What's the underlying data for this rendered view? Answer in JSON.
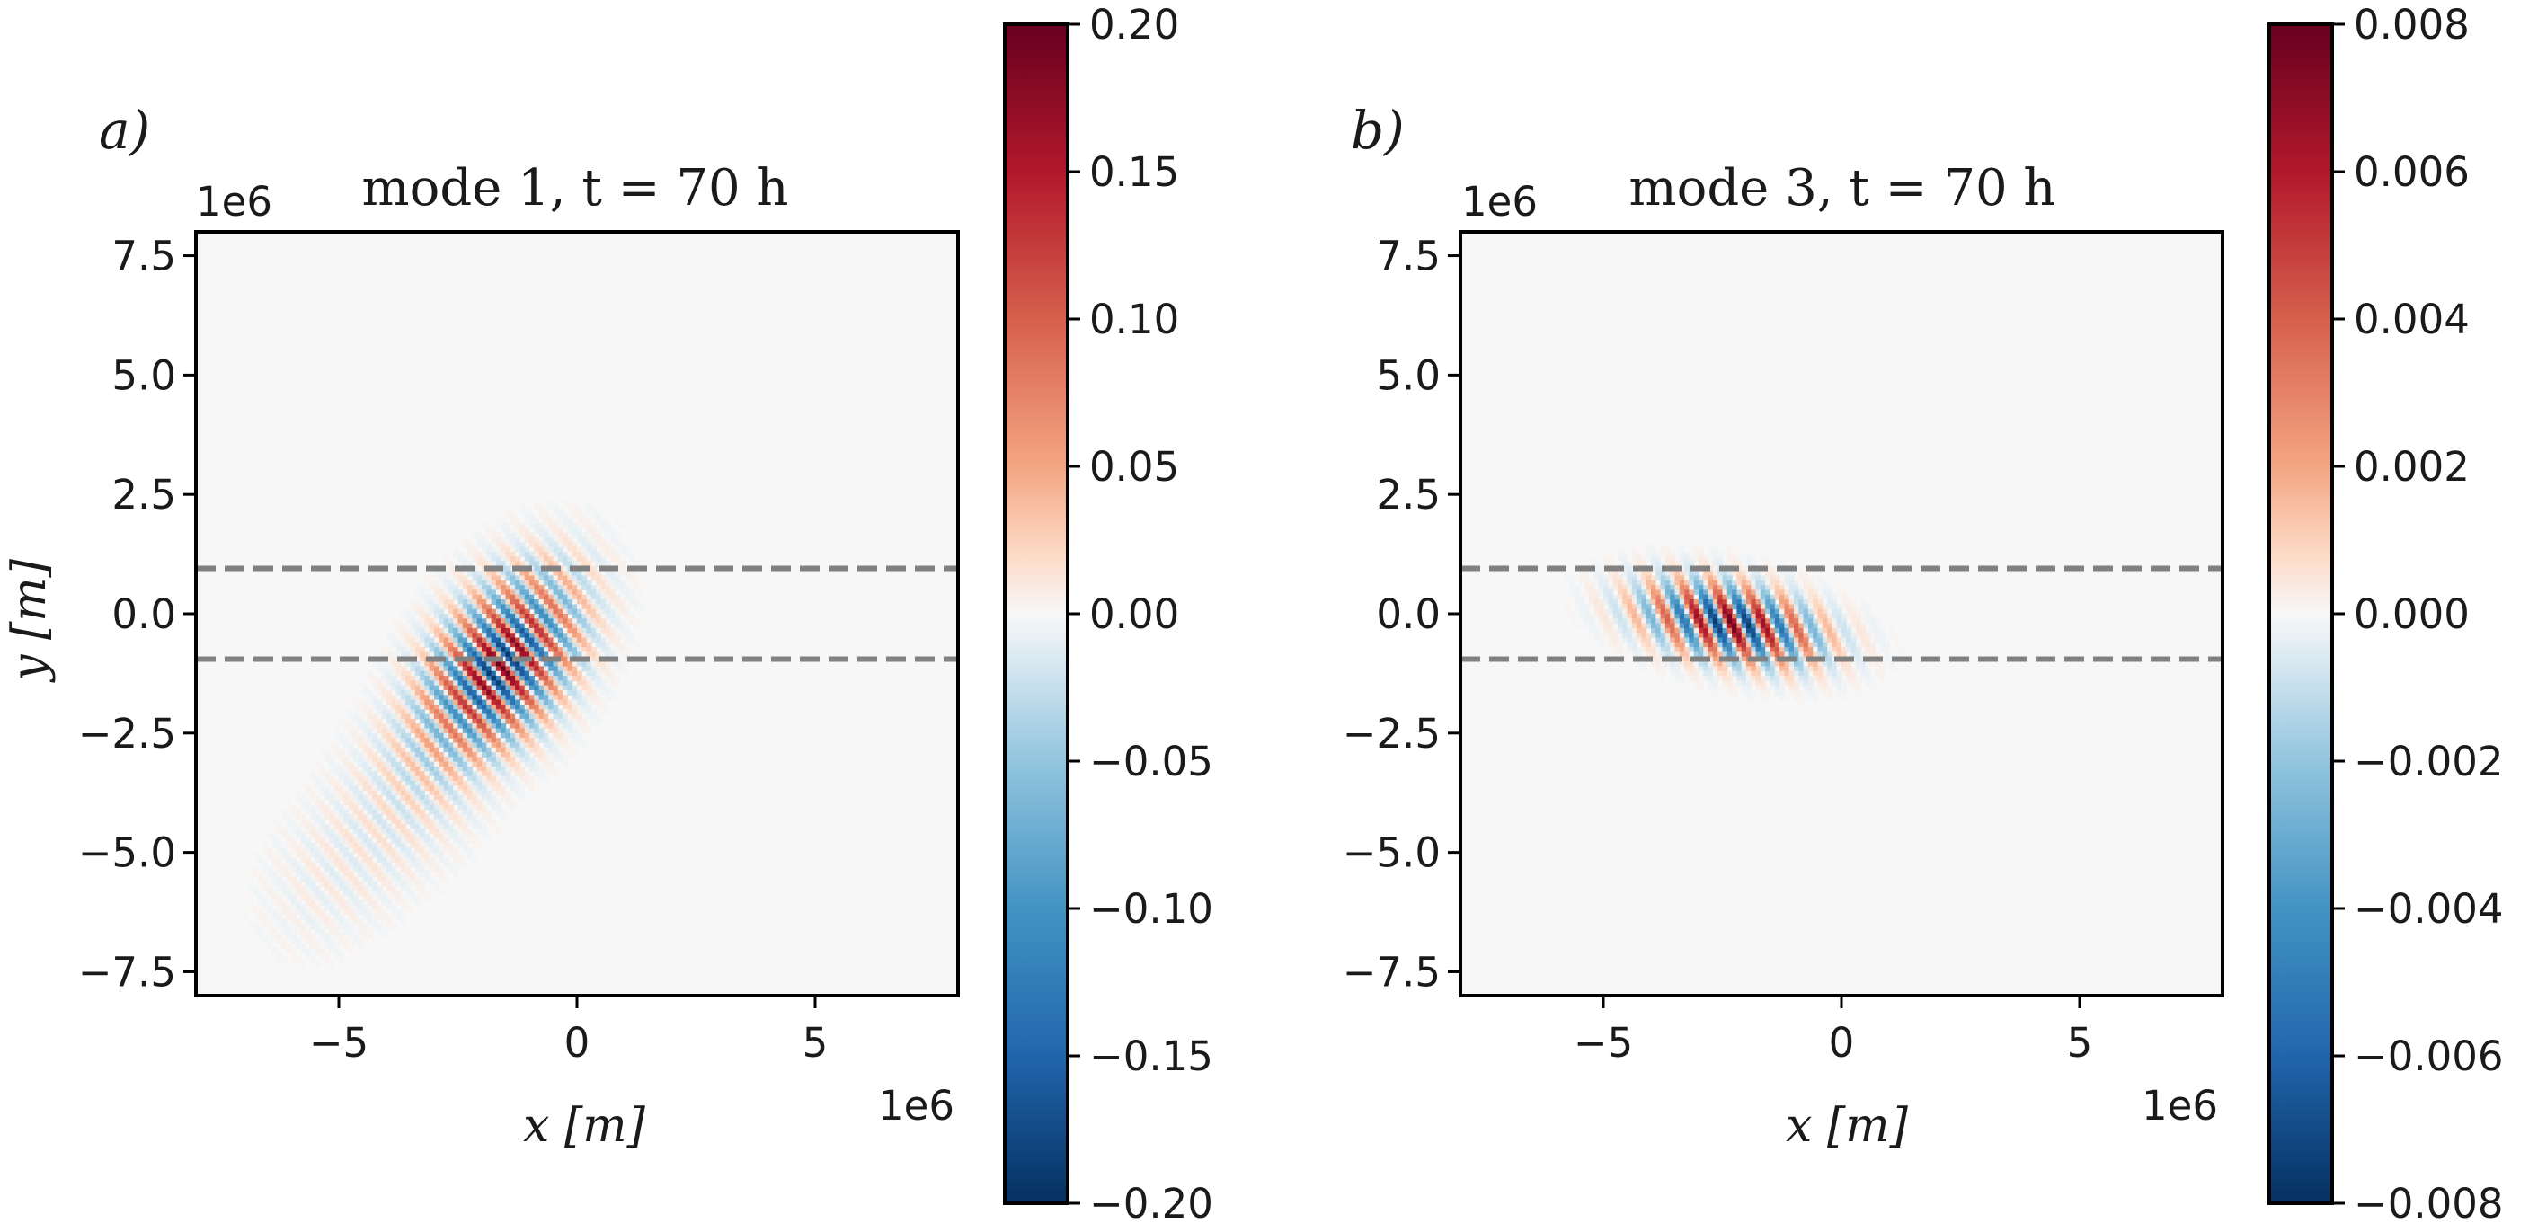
{
  "chart_data": [
    {
      "type": "heatmap",
      "panel_label": "a)",
      "title": "mode 1, t = 70 h",
      "xlabel": "x [m]",
      "ylabel": "y [m]",
      "x_offset_text": "1e6",
      "y_offset_text": "1e6",
      "xlim": [
        -8,
        8
      ],
      "ylim": [
        -8,
        8
      ],
      "xticks": [
        -5,
        0,
        5
      ],
      "xtick_labels": [
        "−5",
        "0",
        "5"
      ],
      "yticks": [
        7.5,
        5.0,
        2.5,
        0.0,
        -2.5,
        -5.0,
        -7.5
      ],
      "ytick_labels": [
        "7.5",
        "5.0",
        "2.5",
        "0.0",
        "−2.5",
        "−5.0",
        "−7.5"
      ],
      "dashed_lines_y": [
        0.95,
        -0.95
      ],
      "colormap": "RdBu_r",
      "colorbar": {
        "range": [
          -0.2,
          0.2
        ],
        "ticks": [
          0.2,
          0.15,
          0.1,
          0.05,
          0.0,
          -0.05,
          -0.1,
          -0.15,
          -0.2
        ],
        "tick_labels": [
          "0.20",
          "0.15",
          "0.10",
          "0.05",
          "0.00",
          "−0.05",
          "−0.10",
          "−0.15",
          "−0.20"
        ]
      },
      "features": [
        {
          "x": -1.6,
          "y": -1.1,
          "wavelength": 0.55,
          "angle_deg": 40,
          "sx": 0.8,
          "sy": 1.3,
          "rot_deg": -35,
          "amp": 1.0
        },
        {
          "x": -3.6,
          "y": -3.8,
          "wavelength": 0.5,
          "angle_deg": 40,
          "sx": 0.9,
          "sy": 1.4,
          "rot_deg": -35,
          "amp": 0.1
        },
        {
          "x": -5.3,
          "y": -5.6,
          "wavelength": 0.5,
          "angle_deg": 40,
          "sx": 0.9,
          "sy": 1.2,
          "rot_deg": -35,
          "amp": 0.04
        }
      ]
    },
    {
      "type": "heatmap",
      "panel_label": "b)",
      "title": "mode 3, t = 70 h",
      "xlabel": "x [m]",
      "ylabel": "",
      "x_offset_text": "1e6",
      "y_offset_text": "1e6",
      "xlim": [
        -8,
        8
      ],
      "ylim": [
        -8,
        8
      ],
      "xticks": [
        -5,
        0,
        5
      ],
      "xtick_labels": [
        "−5",
        "0",
        "5"
      ],
      "yticks": [
        7.5,
        5.0,
        2.5,
        0.0,
        -2.5,
        -5.0,
        -7.5
      ],
      "ytick_labels": [
        "7.5",
        "5.0",
        "2.5",
        "0.0",
        "−2.5",
        "−5.0",
        "−7.5"
      ],
      "dashed_lines_y": [
        0.95,
        -0.95
      ],
      "colormap": "RdBu_r",
      "colorbar": {
        "range": [
          -0.008,
          0.008
        ],
        "ticks": [
          0.008,
          0.006,
          0.004,
          0.002,
          0.0,
          -0.002,
          -0.004,
          -0.006,
          -0.008
        ],
        "tick_labels": [
          "0.008",
          "0.006",
          "0.004",
          "0.002",
          "0.000",
          "−0.002",
          "−0.004",
          "−0.006",
          "−0.008"
        ]
      },
      "features": [
        {
          "x": -2.3,
          "y": -0.2,
          "wavelength": 0.6,
          "angle_deg": 25,
          "sx": 1.2,
          "sy": 0.5,
          "rot_deg": -12,
          "amp": 1.0
        }
      ]
    }
  ]
}
